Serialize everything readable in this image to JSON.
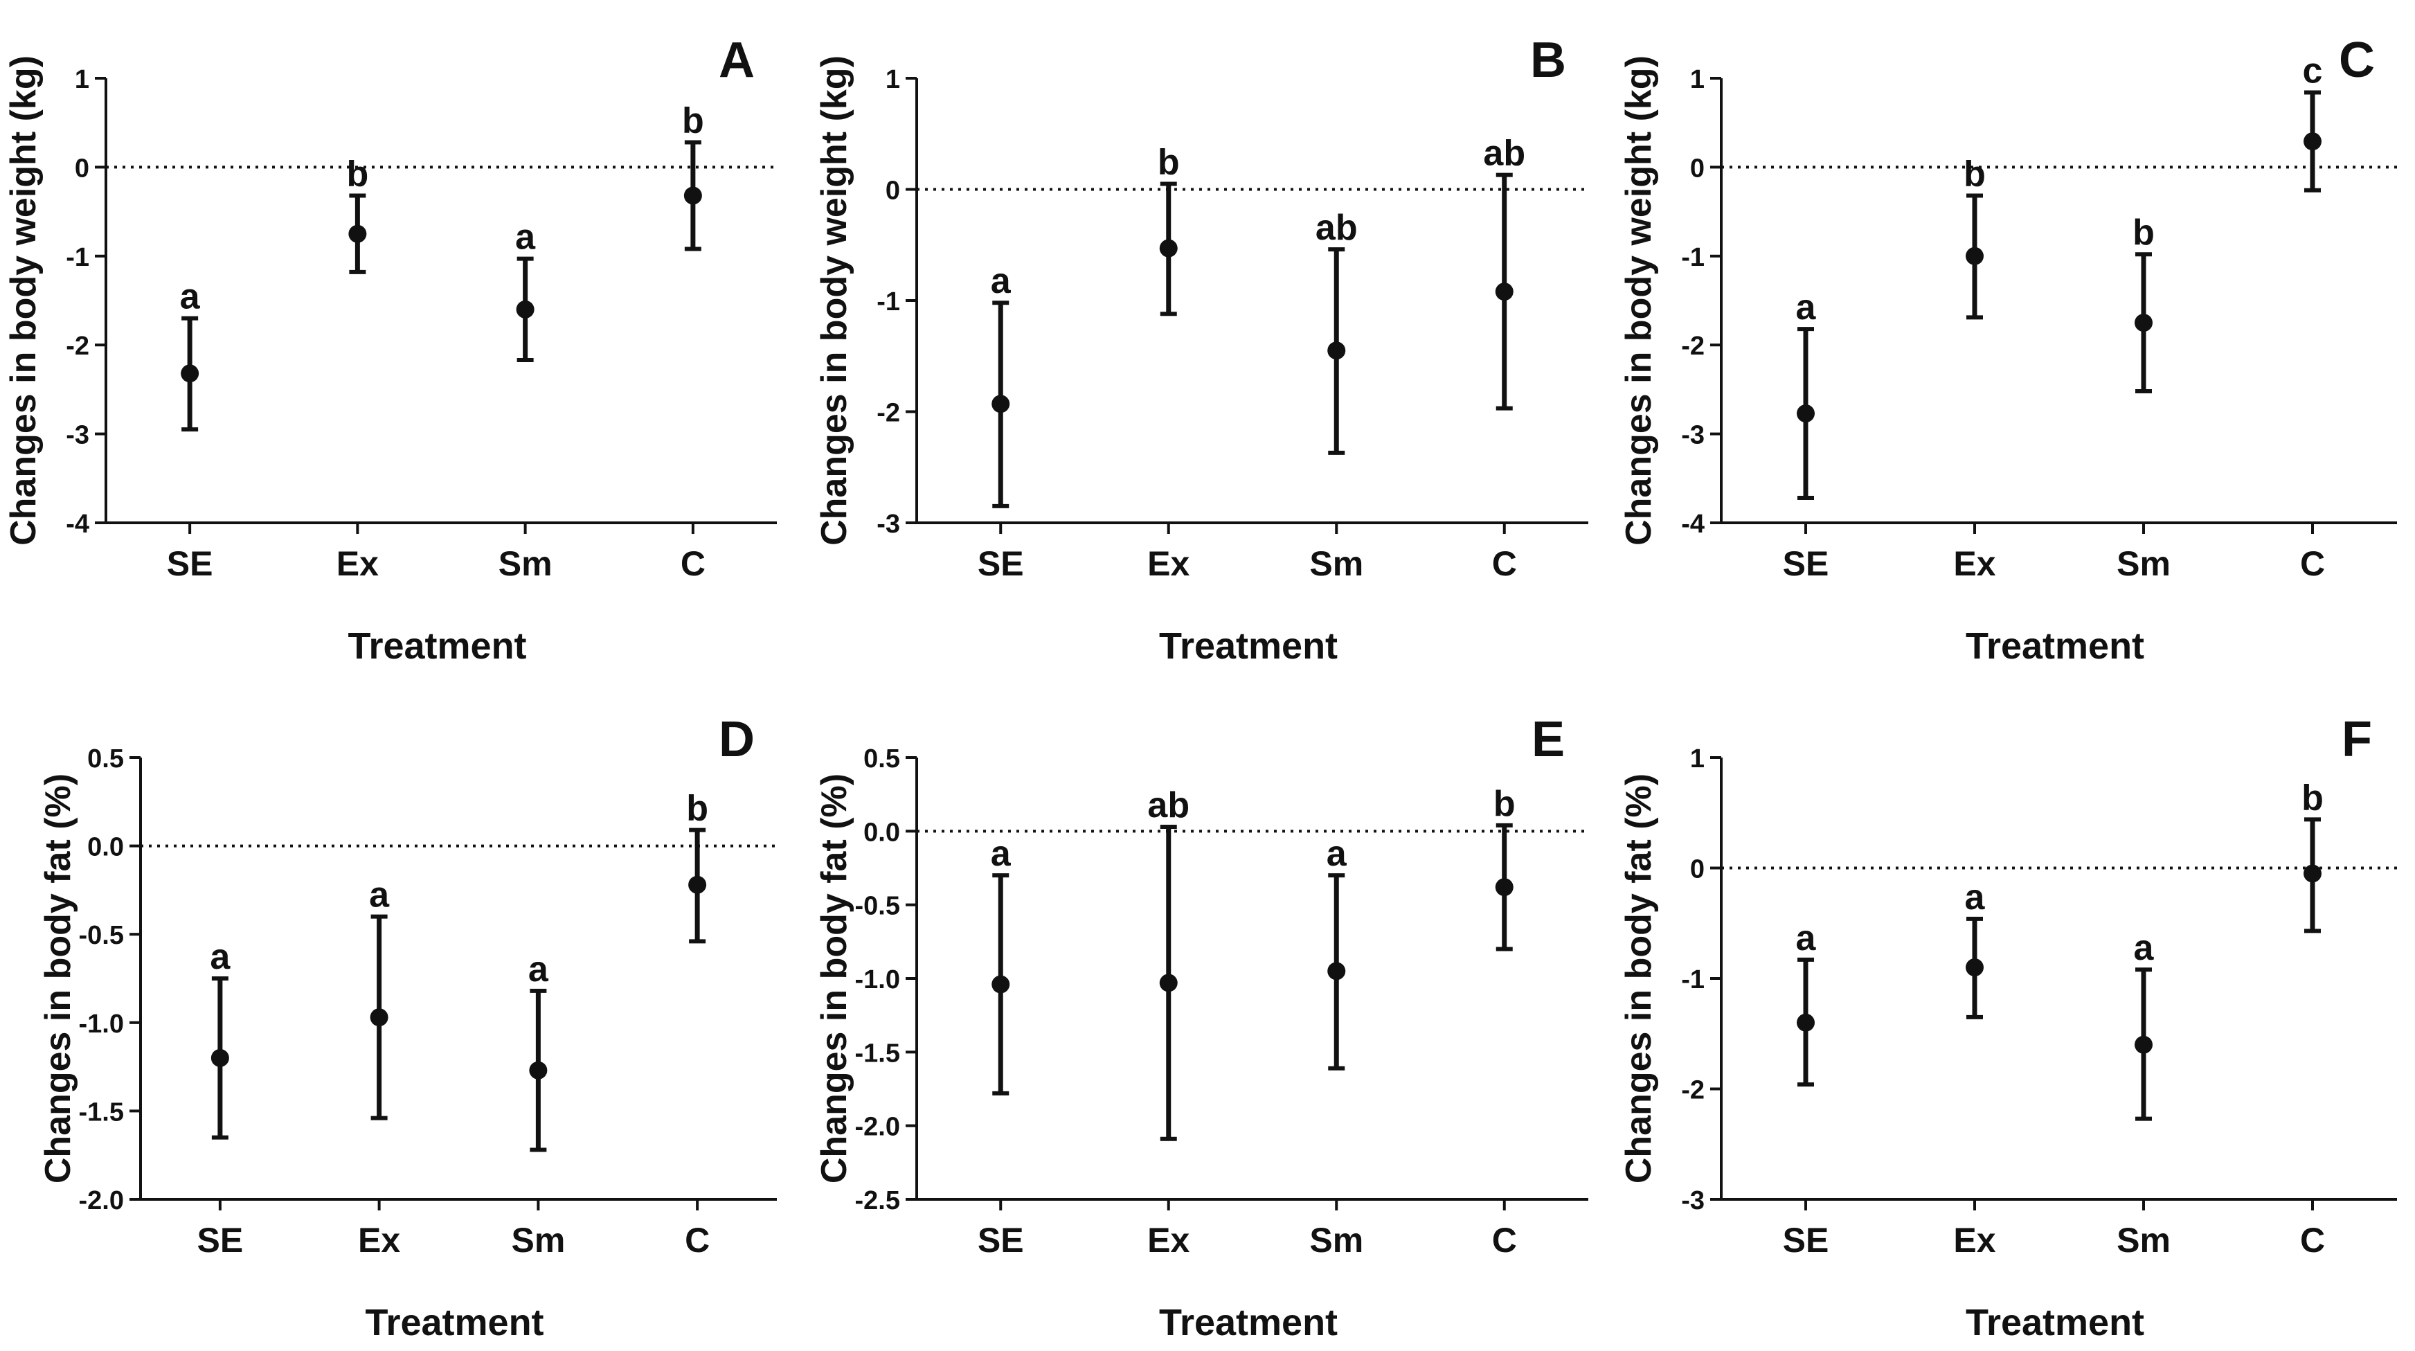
{
  "chart_data": [
    {
      "type": "scatter",
      "panel_letter": "A",
      "categories": [
        "SE",
        "Ex",
        "Sm",
        "C"
      ],
      "means": [
        -2.32,
        -0.75,
        -1.6,
        -0.32
      ],
      "lower": [
        -2.95,
        -1.18,
        -2.17,
        -0.92
      ],
      "upper": [
        -1.7,
        -0.32,
        -1.03,
        0.28
      ],
      "letters": [
        "a",
        "b",
        "a",
        "b"
      ],
      "xlabel": "Treatment",
      "ylabel": "Changes in body weight (kg)",
      "ylim": [
        -4,
        1
      ],
      "yticks": [
        -4,
        -3,
        -2,
        -1,
        0,
        1
      ],
      "ytick_labels": [
        "-4",
        "-3",
        "-2",
        "-1",
        "0",
        "1"
      ],
      "reference_line": 0
    },
    {
      "type": "scatter",
      "panel_letter": "B",
      "categories": [
        "SE",
        "Ex",
        "Sm",
        "C"
      ],
      "means": [
        -1.93,
        -0.53,
        -1.45,
        -0.92
      ],
      "lower": [
        -2.85,
        -1.12,
        -2.37,
        -1.97
      ],
      "upper": [
        -1.02,
        0.05,
        -0.54,
        0.13
      ],
      "letters": [
        "a",
        "b",
        "ab",
        "ab"
      ],
      "xlabel": "Treatment",
      "ylabel": "Changes in body weight (kg)",
      "ylim": [
        -3,
        1
      ],
      "yticks": [
        -3,
        -2,
        -1,
        0,
        1
      ],
      "ytick_labels": [
        "-3",
        "-2",
        "-1",
        "0",
        "1"
      ],
      "reference_line": 0
    },
    {
      "type": "scatter",
      "panel_letter": "C",
      "categories": [
        "SE",
        "Ex",
        "Sm",
        "C"
      ],
      "means": [
        -2.77,
        -1.0,
        -1.75,
        0.29
      ],
      "lower": [
        -3.72,
        -1.69,
        -2.52,
        -0.26
      ],
      "upper": [
        -1.82,
        -0.32,
        -0.98,
        0.84
      ],
      "letters": [
        "a",
        "b",
        "b",
        "c"
      ],
      "xlabel": "Treatment",
      "ylabel": "Changes in body weight (kg)",
      "ylim": [
        -4,
        1
      ],
      "yticks": [
        -4,
        -3,
        -2,
        -1,
        0,
        1
      ],
      "ytick_labels": [
        "-4",
        "-3",
        "-2",
        "-1",
        "0",
        "1"
      ],
      "reference_line": 0
    },
    {
      "type": "scatter",
      "panel_letter": "D",
      "categories": [
        "SE",
        "Ex",
        "Sm",
        "C"
      ],
      "means": [
        -1.2,
        -0.97,
        -1.27,
        -0.22
      ],
      "lower": [
        -1.65,
        -1.54,
        -1.72,
        -0.54
      ],
      "upper": [
        -0.75,
        -0.4,
        -0.82,
        0.09
      ],
      "letters": [
        "a",
        "a",
        "a",
        "b"
      ],
      "xlabel": "Treatment",
      "ylabel": "Changes in body fat (%)",
      "ylim": [
        -2.0,
        0.5
      ],
      "yticks": [
        -2.0,
        -1.5,
        -1.0,
        -0.5,
        0.0,
        0.5
      ],
      "ytick_labels": [
        "-2.0",
        "-1.5",
        "-1.0",
        "-0.5",
        "0.0",
        "0.5"
      ],
      "reference_line": 0
    },
    {
      "type": "scatter",
      "panel_letter": "E",
      "categories": [
        "SE",
        "Ex",
        "Sm",
        "C"
      ],
      "means": [
        -1.04,
        -1.03,
        -0.95,
        -0.38
      ],
      "lower": [
        -1.78,
        -2.09,
        -1.61,
        -0.8
      ],
      "upper": [
        -0.3,
        0.03,
        -0.3,
        0.04
      ],
      "letters": [
        "a",
        "ab",
        "a",
        "b"
      ],
      "xlabel": "Treatment",
      "ylabel": "Changes in body fat (%)",
      "ylim": [
        -2.5,
        0.5
      ],
      "yticks": [
        -2.5,
        -2.0,
        -1.5,
        -1.0,
        -0.5,
        0.0,
        0.5
      ],
      "ytick_labels": [
        "-2.5",
        "-2.0",
        "-1.5",
        "-1.0",
        "-0.5",
        "0.0",
        "0.5"
      ],
      "reference_line": 0
    },
    {
      "type": "scatter",
      "panel_letter": "F",
      "categories": [
        "SE",
        "Ex",
        "Sm",
        "C"
      ],
      "means": [
        -1.4,
        -0.9,
        -1.6,
        -0.05
      ],
      "lower": [
        -1.96,
        -1.35,
        -2.27,
        -0.57
      ],
      "upper": [
        -0.83,
        -0.46,
        -0.92,
        0.44
      ],
      "letters": [
        "a",
        "a",
        "a",
        "b"
      ],
      "xlabel": "Treatment",
      "ylabel": "Changes in body fat (%)",
      "ylim": [
        -3,
        1
      ],
      "yticks": [
        -3,
        -2,
        -1,
        0,
        1
      ],
      "ytick_labels": [
        "-3",
        "-2",
        "-1",
        "0",
        "1"
      ],
      "reference_line": 0
    }
  ],
  "colors": {
    "ink": "#111111",
    "background": "#ffffff"
  }
}
